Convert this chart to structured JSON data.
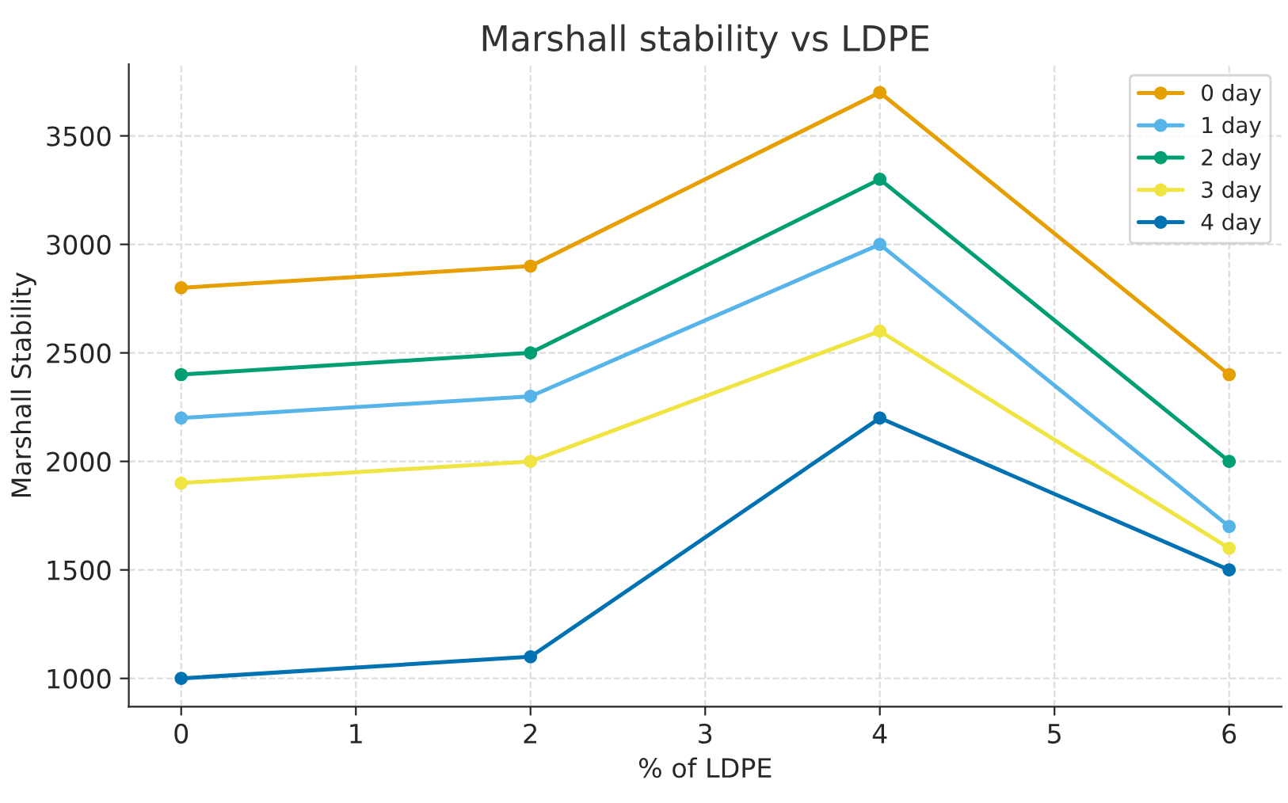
{
  "chart_data": {
    "type": "line",
    "title": "Marshall stability vs LDPE",
    "xlabel": "% of LDPE",
    "ylabel": "Marshall Stability",
    "x": [
      0,
      2,
      4,
      6
    ],
    "series": [
      {
        "name": "0 day",
        "color": "#e69f00",
        "values": [
          2800,
          2900,
          3700,
          2400
        ]
      },
      {
        "name": "1 day",
        "color": "#56b4e9",
        "values": [
          2200,
          2300,
          3000,
          1700
        ]
      },
      {
        "name": "2 day",
        "color": "#009e73",
        "values": [
          2400,
          2500,
          3300,
          2000
        ]
      },
      {
        "name": "3 day",
        "color": "#f0e442",
        "values": [
          1900,
          2000,
          2600,
          1600
        ]
      },
      {
        "name": "4 day",
        "color": "#0072b2",
        "values": [
          1000,
          1100,
          2200,
          1500
        ]
      }
    ],
    "xlim": [
      -0.3,
      6.3
    ],
    "xticks": [
      0,
      1,
      2,
      3,
      4,
      5,
      6
    ],
    "ylim": [
      870,
      3830
    ],
    "yticks": [
      1000,
      1500,
      2000,
      2500,
      3000,
      3500
    ],
    "grid": true,
    "legend": "top right",
    "marker": "circle",
    "line_style": "solid"
  }
}
